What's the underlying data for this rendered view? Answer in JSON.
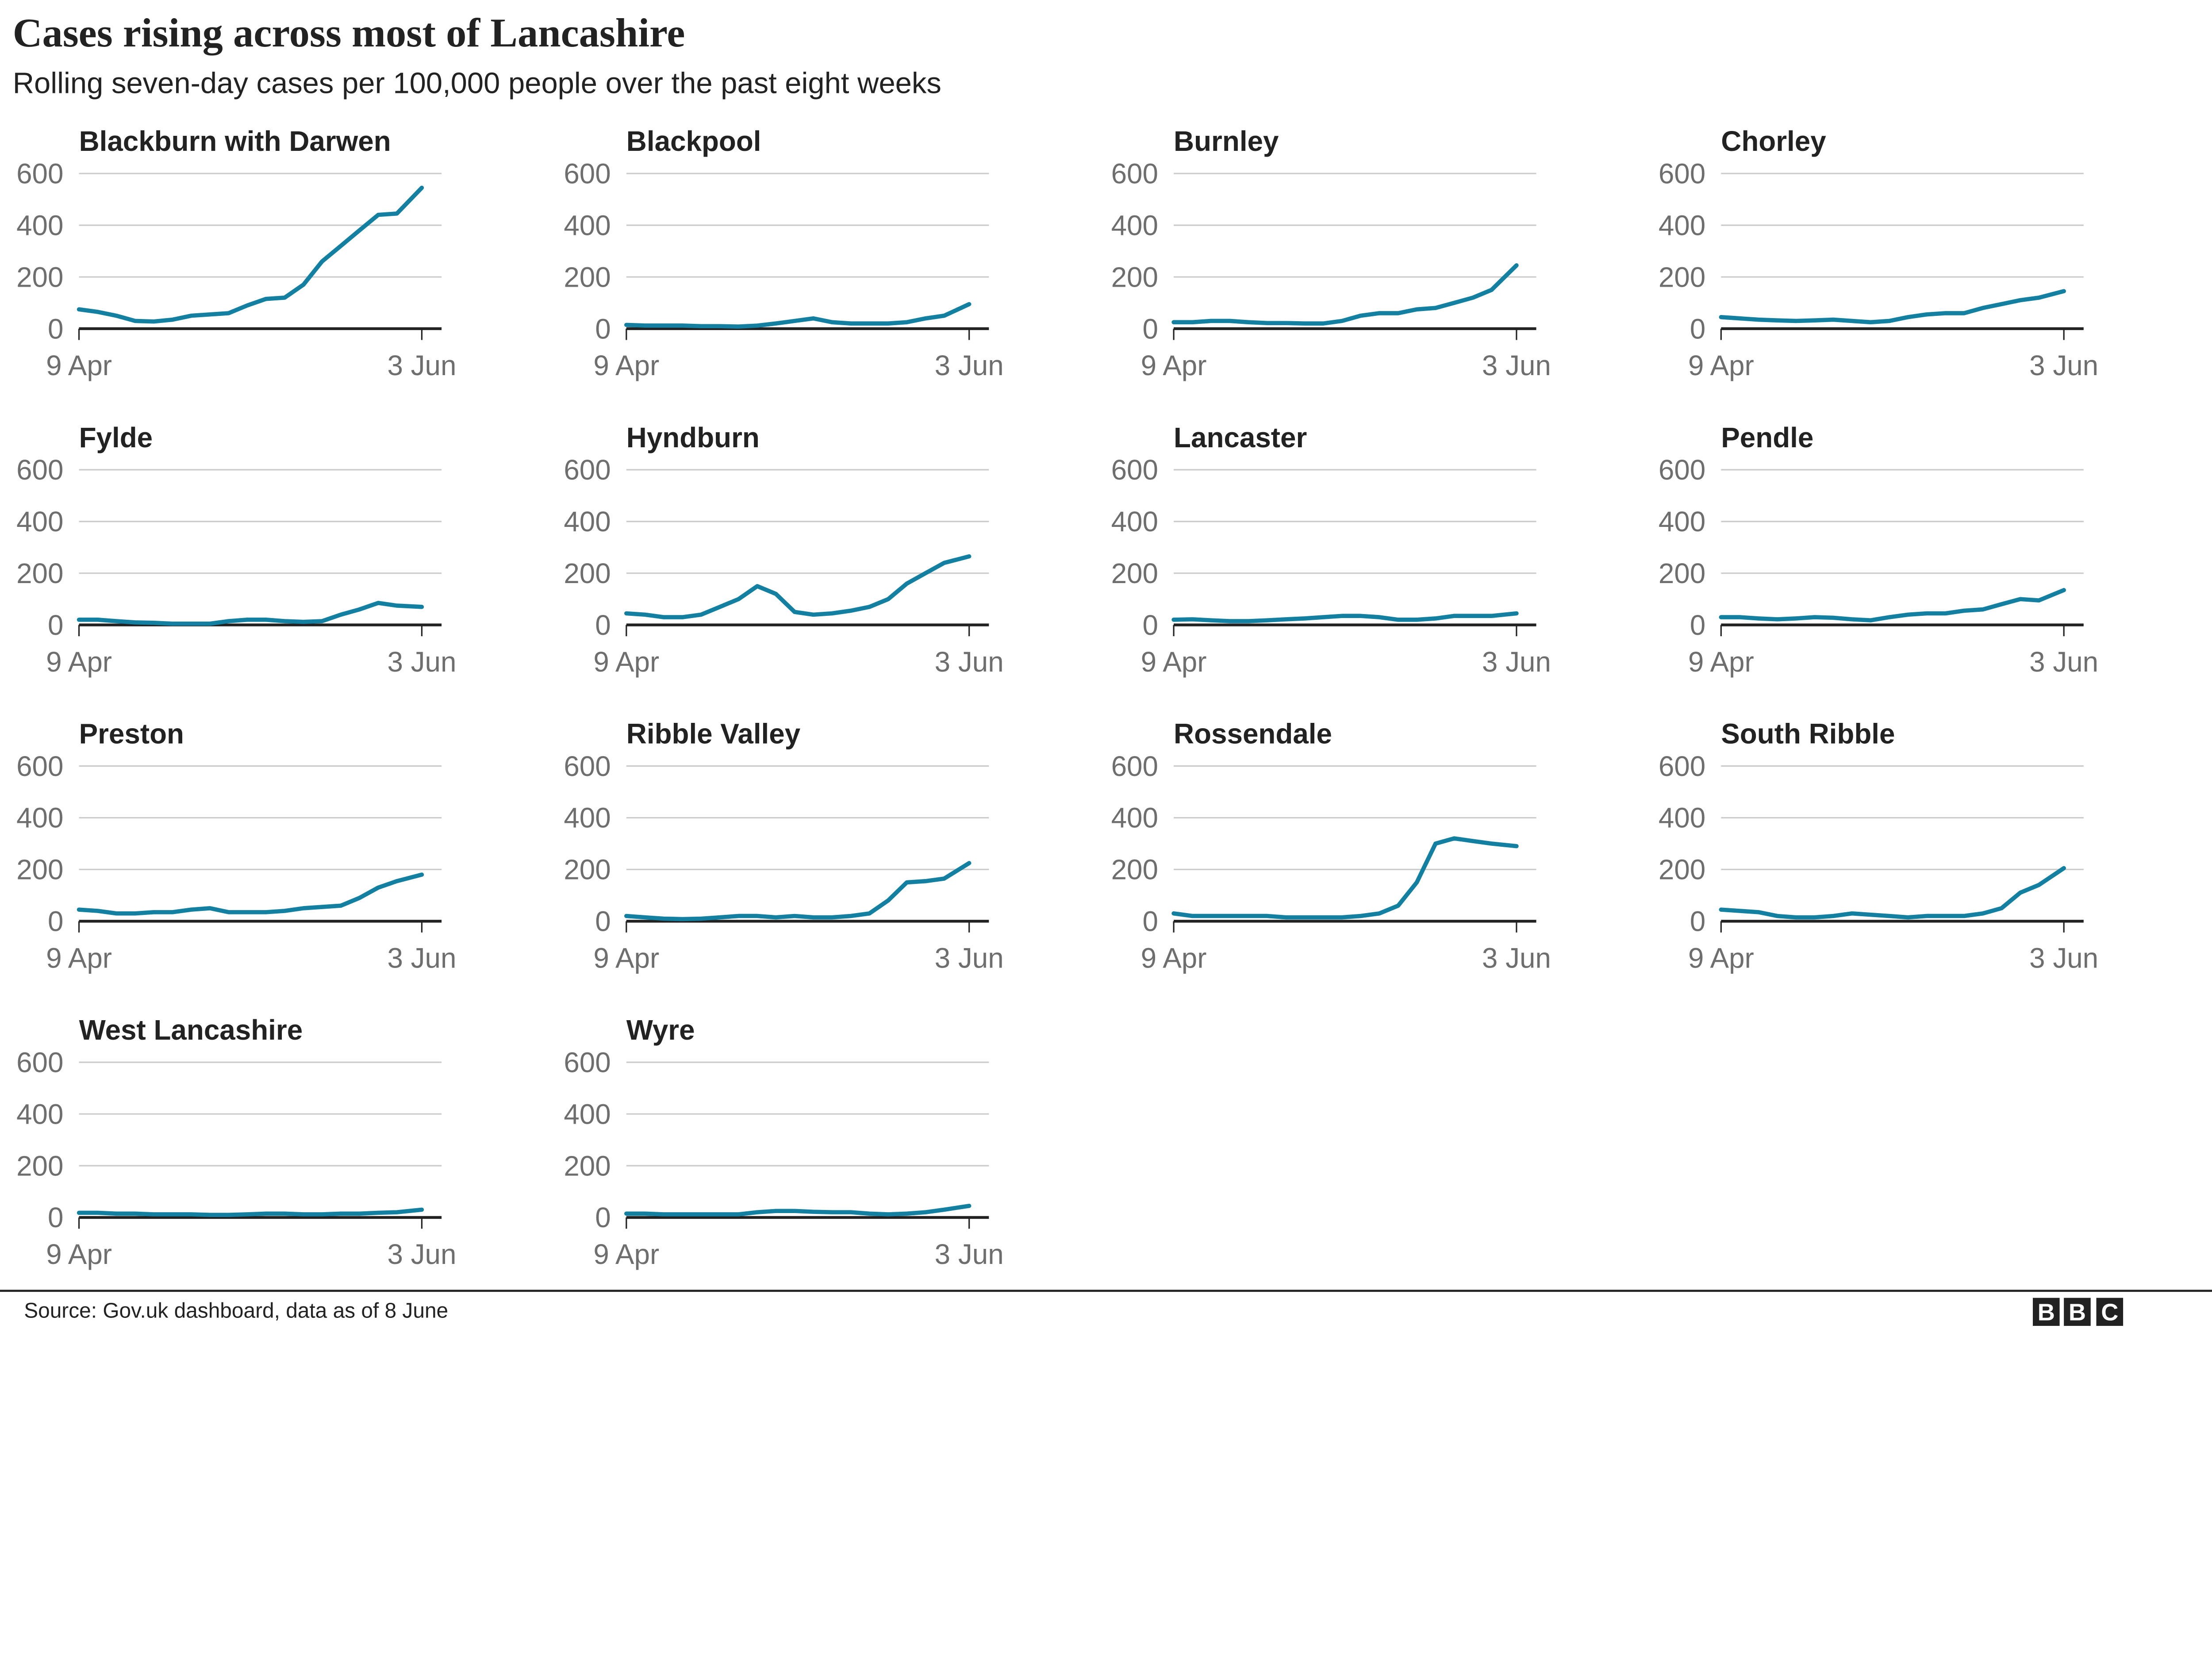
{
  "header": {
    "title": "Cases rising across most of Lancashire",
    "subtitle": "Rolling seven-day cases per 100,000 people over the past eight weeks"
  },
  "footer": {
    "source": "Source: Gov.uk dashboard, data as of  8 June",
    "logo": "BBC"
  },
  "colors": {
    "line": "#1380a1",
    "grid": "#cbcbcb",
    "axis": "#222222",
    "tick_text": "#6e6e6e"
  },
  "chart_data": {
    "type": "line",
    "layout": "small-multiples",
    "title": "Cases rising across most of Lancashire",
    "subtitle": "Rolling seven-day cases per 100,000 people over the past eight weeks",
    "ylim": [
      0,
      600
    ],
    "yticks": [
      0,
      200,
      400,
      600
    ],
    "xtick_labels": [
      "9 Apr",
      "3 Jun"
    ],
    "grid": true,
    "dates": [
      "2021-04-09",
      "2021-04-12",
      "2021-04-15",
      "2021-04-18",
      "2021-04-21",
      "2021-04-24",
      "2021-04-27",
      "2021-04-30",
      "2021-05-03",
      "2021-05-06",
      "2021-05-09",
      "2021-05-12",
      "2021-05-15",
      "2021-05-18",
      "2021-05-21",
      "2021-05-24",
      "2021-05-27",
      "2021-05-30",
      "2021-06-03"
    ],
    "series": [
      {
        "name": "Blackburn with Darwen",
        "values": [
          75,
          65,
          50,
          30,
          28,
          35,
          50,
          55,
          60,
          90,
          115,
          120,
          170,
          260,
          320,
          380,
          440,
          445,
          545
        ]
      },
      {
        "name": "Blackpool",
        "values": [
          15,
          12,
          12,
          12,
          10,
          10,
          8,
          12,
          20,
          30,
          40,
          25,
          20,
          20,
          20,
          25,
          40,
          50,
          95
        ]
      },
      {
        "name": "Burnley",
        "values": [
          25,
          25,
          30,
          30,
          25,
          22,
          22,
          20,
          20,
          30,
          50,
          60,
          60,
          75,
          80,
          100,
          120,
          150,
          245
        ]
      },
      {
        "name": "Chorley",
        "values": [
          45,
          40,
          35,
          32,
          30,
          32,
          35,
          30,
          25,
          30,
          45,
          55,
          60,
          60,
          80,
          95,
          110,
          120,
          145
        ]
      },
      {
        "name": "Fylde",
        "values": [
          20,
          20,
          15,
          10,
          8,
          5,
          5,
          5,
          15,
          20,
          20,
          15,
          12,
          15,
          40,
          60,
          85,
          75,
          70
        ]
      },
      {
        "name": "Hyndburn",
        "values": [
          45,
          40,
          30,
          30,
          40,
          70,
          100,
          150,
          120,
          50,
          40,
          45,
          55,
          70,
          100,
          160,
          200,
          240,
          265
        ]
      },
      {
        "name": "Lancaster",
        "values": [
          20,
          22,
          18,
          15,
          15,
          18,
          22,
          25,
          30,
          35,
          35,
          30,
          20,
          20,
          25,
          35,
          35,
          35,
          45
        ]
      },
      {
        "name": "Pendle",
        "values": [
          30,
          30,
          25,
          22,
          25,
          30,
          28,
          22,
          18,
          30,
          40,
          45,
          45,
          55,
          60,
          80,
          100,
          95,
          135
        ]
      },
      {
        "name": "Preston",
        "values": [
          45,
          40,
          30,
          30,
          35,
          35,
          45,
          50,
          35,
          35,
          35,
          40,
          50,
          55,
          60,
          90,
          130,
          155,
          180
        ]
      },
      {
        "name": "Ribble Valley",
        "values": [
          20,
          15,
          10,
          8,
          10,
          15,
          20,
          20,
          15,
          20,
          15,
          15,
          20,
          30,
          80,
          150,
          155,
          165,
          225
        ]
      },
      {
        "name": "Rossendale",
        "values": [
          30,
          20,
          20,
          20,
          20,
          20,
          15,
          15,
          15,
          15,
          20,
          30,
          60,
          150,
          300,
          320,
          310,
          300,
          290
        ]
      },
      {
        "name": "South Ribble",
        "values": [
          45,
          40,
          35,
          20,
          15,
          15,
          20,
          30,
          25,
          20,
          15,
          20,
          20,
          20,
          30,
          50,
          110,
          140,
          205
        ]
      },
      {
        "name": "West Lancashire",
        "values": [
          18,
          18,
          15,
          15,
          12,
          12,
          12,
          10,
          10,
          12,
          15,
          15,
          12,
          12,
          15,
          15,
          18,
          20,
          30
        ]
      },
      {
        "name": "Wyre",
        "values": [
          15,
          15,
          12,
          12,
          12,
          12,
          12,
          20,
          25,
          25,
          22,
          20,
          20,
          15,
          12,
          15,
          20,
          30,
          45
        ]
      }
    ]
  }
}
